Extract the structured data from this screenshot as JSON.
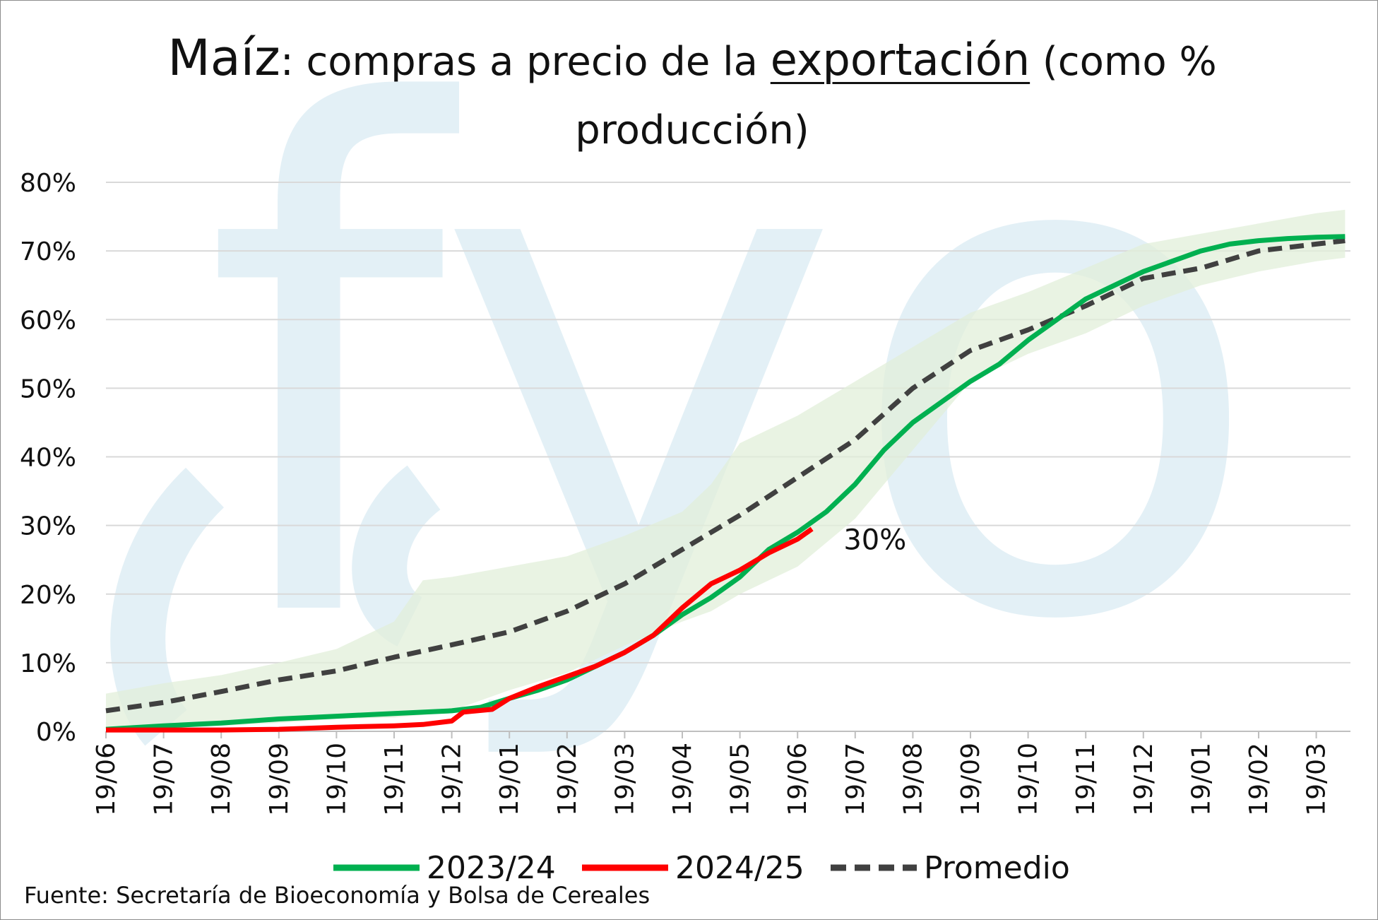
{
  "title": {
    "part1": "Maíz",
    "part2": ": compras a precio de la ",
    "part3": "exportación",
    "part4": " (como %",
    "line2": "producción)"
  },
  "source": "Fuente: Secretaría de Bioeconomía y Bolsa de Cereales",
  "watermark_text": "fyo",
  "colors": {
    "s2324": "#00b050",
    "s2425": "#ff0000",
    "avg": "#404040",
    "band": "#e2efd9",
    "watermark": "#e3f0f6",
    "grid": "#d9d9d9"
  },
  "chart_data": {
    "type": "line",
    "title": "Maíz: compras a precio de la exportación (como % producción)",
    "xlabel": "",
    "ylabel": "",
    "ylim": [
      0,
      80
    ],
    "y_ticks": [
      "0%",
      "10%",
      "20%",
      "30%",
      "40%",
      "50%",
      "60%",
      "70%",
      "80%"
    ],
    "x_ticks": [
      "19/06",
      "19/07",
      "19/08",
      "19/09",
      "19/10",
      "19/11",
      "19/12",
      "19/01",
      "19/02",
      "19/03",
      "19/04",
      "19/05",
      "19/06",
      "19/07",
      "19/08",
      "19/09",
      "19/10",
      "19/11",
      "19/12",
      "19/01",
      "19/02",
      "19/03"
    ],
    "grid": "horizontal",
    "legend_position": "bottom",
    "annotation": {
      "text": "30%",
      "x": 12.7,
      "y": 29
    },
    "series": [
      {
        "name": "2023/24",
        "x": [
          0,
          1,
          2,
          3,
          4,
          5,
          6,
          6.5,
          7,
          7.5,
          8,
          8.5,
          9,
          9.5,
          10,
          10.5,
          11,
          11.5,
          12,
          12.5,
          13,
          13.5,
          14,
          14.5,
          15,
          15.5,
          16,
          16.5,
          17,
          17.5,
          18,
          18.5,
          19,
          19.5,
          20,
          20.5,
          21,
          21.5
        ],
        "values": [
          0.3,
          0.8,
          1.2,
          1.8,
          2.2,
          2.6,
          3.0,
          3.5,
          4.8,
          6.0,
          7.5,
          9.5,
          11.5,
          14.0,
          17.0,
          19.5,
          22.5,
          26.5,
          29.0,
          32.0,
          36.0,
          41.0,
          45.0,
          48.0,
          51.0,
          53.5,
          57.0,
          60.0,
          63.0,
          65.0,
          67.0,
          68.5,
          70.0,
          71.0,
          71.5,
          71.8,
          72.0,
          72.1
        ]
      },
      {
        "name": "2024/25",
        "x": [
          0,
          1,
          2,
          3,
          4,
          5,
          5.5,
          6,
          6.2,
          6.7,
          7,
          7.5,
          8,
          8.5,
          9,
          9.5,
          10,
          10.5,
          11,
          11.5,
          12,
          12.25
        ],
        "values": [
          0.2,
          0.2,
          0.2,
          0.3,
          0.6,
          0.8,
          1.0,
          1.5,
          2.8,
          3.2,
          4.8,
          6.5,
          8.0,
          9.5,
          11.5,
          14.0,
          18.0,
          21.5,
          23.5,
          26.0,
          28.0,
          29.5
        ]
      },
      {
        "name": "Promedio",
        "x": [
          0,
          1,
          2,
          3,
          4,
          5,
          6,
          7,
          8,
          9,
          10,
          11,
          12,
          13,
          14,
          15,
          16,
          17,
          18,
          19,
          20,
          21,
          21.5
        ],
        "values": [
          3.0,
          4.2,
          5.8,
          7.5,
          8.8,
          10.8,
          12.6,
          14.5,
          17.5,
          21.5,
          26.5,
          31.5,
          37.0,
          42.5,
          50.0,
          55.5,
          58.5,
          62.0,
          66.0,
          67.5,
          70.0,
          71.0,
          71.5
        ]
      }
    ],
    "band": {
      "x": [
        0,
        1,
        2,
        3,
        4,
        5,
        5.5,
        6,
        7,
        8,
        9,
        10,
        10.5,
        11,
        12,
        13,
        14,
        15,
        16,
        17,
        18,
        19,
        20,
        21,
        21.5
      ],
      "upper": [
        5.5,
        7.0,
        8.2,
        10.0,
        12.0,
        16.0,
        22.0,
        22.5,
        24.0,
        25.5,
        28.5,
        32.0,
        36.0,
        42.0,
        46.0,
        51.0,
        56.0,
        61.0,
        64.0,
        67.5,
        71.0,
        72.5,
        74.0,
        75.5,
        76.0
      ],
      "lower": [
        0.3,
        0.5,
        0.8,
        1.2,
        1.8,
        2.0,
        2.4,
        3.0,
        6.0,
        8.5,
        12.5,
        16.0,
        17.5,
        20.0,
        24.0,
        31.0,
        41.0,
        51.0,
        55.0,
        58.0,
        62.0,
        65.0,
        67.0,
        68.5,
        69.0
      ]
    }
  },
  "legend": {
    "item1": "2023/24",
    "item2": "2024/25",
    "item3": "Promedio"
  }
}
